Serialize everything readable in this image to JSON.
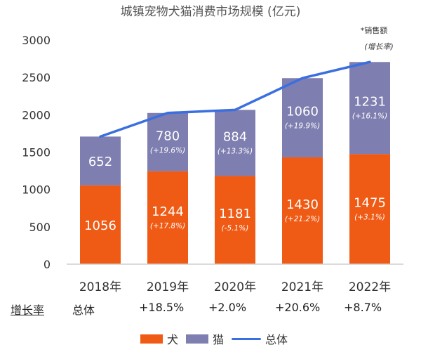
{
  "colors": {
    "dog": "#EF5A14",
    "cat": "#7E7EB0",
    "total": "#3B6FE0",
    "gridline": "#cfcfcf"
  },
  "chart_data": {
    "type": "bar",
    "stacked": true,
    "title": "城镇宠物犬猫消费市场规模 (亿元)",
    "categories": [
      "2018年",
      "2019年",
      "2020年",
      "2021年",
      "2022年"
    ],
    "ylim": [
      0,
      3000
    ],
    "yticks": [
      "0",
      "500",
      "1000",
      "1500",
      "2000",
      "2500",
      "3000"
    ],
    "grid": false,
    "legend_position": "bottom",
    "series": [
      {
        "name": "犬",
        "values": [
          1056,
          1244,
          1181,
          1430,
          1475
        ],
        "labels": [
          "1056",
          "1244",
          "1181",
          "1430",
          "1475"
        ],
        "growth_labels": [
          "",
          "(+17.8%)",
          "(-5.1%)",
          "(+21.2%)",
          "(+3.1%)"
        ]
      },
      {
        "name": "猫",
        "values": [
          652,
          780,
          884,
          1060,
          1231
        ],
        "labels": [
          "652",
          "780",
          "884",
          "1060",
          "1231"
        ],
        "growth_labels": [
          "",
          "(+19.6%)",
          "(+13.3%)",
          "(+19.9%)",
          "(+16.1%)"
        ]
      },
      {
        "name": "总体",
        "type": "line",
        "values": [
          1708,
          2024,
          2065,
          2490,
          2706
        ]
      }
    ],
    "annotations": {
      "note_line1": "*销售额",
      "note_line2": "(增长率)"
    },
    "growth_row": {
      "label": "增长率",
      "first": "总体",
      "values": [
        "+18.5%",
        "+2.0%",
        "+20.6%",
        "+8.7%"
      ]
    }
  }
}
